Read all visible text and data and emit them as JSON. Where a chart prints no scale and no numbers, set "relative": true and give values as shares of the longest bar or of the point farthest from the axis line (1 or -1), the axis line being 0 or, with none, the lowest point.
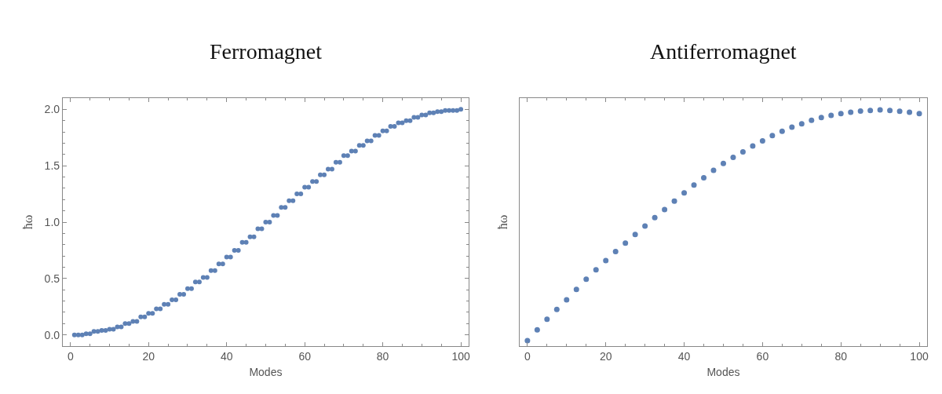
{
  "chart_data": [
    {
      "type": "scatter",
      "title": "Ferromagnet",
      "xlabel": "Modes",
      "ylabel": "ħω",
      "marker": "circle",
      "xlim": [
        -2,
        102
      ],
      "xticks": [
        0,
        20,
        40,
        60,
        80,
        100
      ],
      "ylim": [
        -0.1,
        2.1
      ],
      "yticks": [
        {
          "value": 0,
          "label": "0.0"
        },
        0.5,
        {
          "value": 1,
          "label": "1.0"
        },
        1.5,
        {
          "value": 2,
          "label": "2.0"
        }
      ],
      "series": [
        {
          "color": "#5e81b5",
          "x": [
            1,
            2,
            3,
            4,
            5,
            6,
            7,
            8,
            9,
            10,
            11,
            12,
            13,
            14,
            15,
            16,
            17,
            18,
            19,
            20,
            21,
            22,
            23,
            24,
            25,
            26,
            27,
            28,
            29,
            30,
            31,
            32,
            33,
            34,
            35,
            36,
            37,
            38,
            39,
            40,
            41,
            42,
            43,
            44,
            45,
            46,
            47,
            48,
            49,
            50,
            51,
            52,
            53,
            54,
            55,
            56,
            57,
            58,
            59,
            60,
            61,
            62,
            63,
            64,
            65,
            66,
            67,
            68,
            69,
            70,
            71,
            72,
            73,
            74,
            75,
            76,
            77,
            78,
            79,
            80,
            81,
            82,
            83,
            84,
            85,
            86,
            87,
            88,
            89,
            90,
            91,
            92,
            93,
            94,
            95,
            96,
            97,
            98,
            99,
            100
          ],
          "values": [
            0,
            0,
            0,
            0.01,
            0.01,
            0.03,
            0.03,
            0.04,
            0.04,
            0.05,
            0.05,
            0.07,
            0.07,
            0.1,
            0.1,
            0.12,
            0.12,
            0.16,
            0.16,
            0.19,
            0.19,
            0.23,
            0.23,
            0.27,
            0.27,
            0.31,
            0.31,
            0.36,
            0.36,
            0.41,
            0.41,
            0.47,
            0.47,
            0.51,
            0.51,
            0.57,
            0.57,
            0.63,
            0.63,
            0.69,
            0.69,
            0.75,
            0.75,
            0.82,
            0.82,
            0.87,
            0.87,
            0.94,
            0.94,
            1.0,
            1.0,
            1.06,
            1.06,
            1.13,
            1.13,
            1.19,
            1.19,
            1.25,
            1.25,
            1.31,
            1.31,
            1.36,
            1.36,
            1.42,
            1.42,
            1.47,
            1.47,
            1.53,
            1.53,
            1.59,
            1.59,
            1.63,
            1.63,
            1.68,
            1.68,
            1.72,
            1.72,
            1.77,
            1.77,
            1.81,
            1.81,
            1.85,
            1.85,
            1.88,
            1.88,
            1.9,
            1.9,
            1.93,
            1.93,
            1.95,
            1.95,
            1.97,
            1.97,
            1.98,
            1.98,
            1.99,
            1.99,
            1.99,
            1.99,
            2.0
          ]
        }
      ]
    },
    {
      "type": "scatter",
      "title": "Antiferromagnet",
      "xlabel": "Modes",
      "ylabel": "ħω",
      "marker": "circle",
      "relative": true,
      "xlim": [
        -2,
        102
      ],
      "xticks": [
        0,
        20,
        40,
        60,
        80,
        100
      ],
      "series": [
        {
          "color": "#5e81b5",
          "x": [
            0,
            2.5,
            5,
            7.5,
            10,
            12.5,
            15,
            17.5,
            20,
            22.5,
            25,
            27.5,
            30,
            32.5,
            35,
            37.5,
            40,
            42.5,
            45,
            47.5,
            50,
            52.5,
            55,
            57.5,
            60,
            62.5,
            65,
            67.5,
            70,
            72.5,
            75,
            77.5,
            80,
            82.5,
            85,
            87.5,
            90,
            92.5,
            95,
            97.5,
            100
          ],
          "values": [
            0.023,
            0.069,
            0.114,
            0.155,
            0.196,
            0.24,
            0.283,
            0.323,
            0.362,
            0.4,
            0.436,
            0.473,
            0.508,
            0.544,
            0.578,
            0.614,
            0.649,
            0.682,
            0.713,
            0.744,
            0.773,
            0.799,
            0.822,
            0.847,
            0.869,
            0.891,
            0.91,
            0.927,
            0.941,
            0.956,
            0.968,
            0.977,
            0.984,
            0.99,
            0.995,
            0.998,
            1,
            0.998,
            0.994,
            0.99,
            0.984
          ]
        }
      ]
    }
  ]
}
